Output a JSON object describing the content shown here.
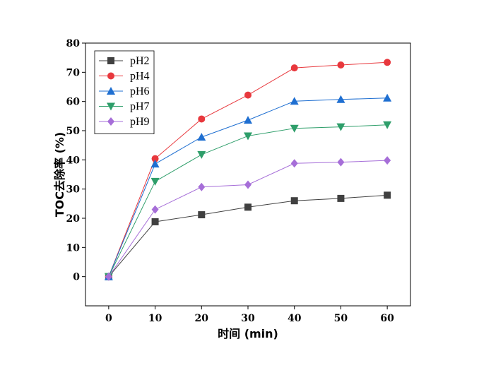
{
  "chart_data": {
    "type": "line",
    "xlabel": "时间 (min)",
    "ylabel": "TOC去除率 (%)",
    "x": [
      0,
      10,
      20,
      30,
      40,
      50,
      60
    ],
    "xlim": [
      -5,
      65
    ],
    "ylim": [
      -10,
      80
    ],
    "xticks": [
      0,
      10,
      20,
      30,
      40,
      50,
      60
    ],
    "yticks": [
      0,
      10,
      20,
      30,
      40,
      50,
      60,
      70,
      80
    ],
    "grid": false,
    "legend_position": "top-left",
    "series": [
      {
        "name": "pH2",
        "color": "#404040",
        "marker": "square",
        "values": [
          0,
          18.8,
          21.2,
          23.8,
          26.0,
          26.8,
          27.9
        ]
      },
      {
        "name": "pH4",
        "color": "#e8383d",
        "marker": "circle",
        "values": [
          0,
          40.4,
          54.0,
          62.2,
          71.5,
          72.5,
          73.4
        ]
      },
      {
        "name": "pH6",
        "color": "#1f6fd1",
        "marker": "triangle-up",
        "values": [
          0,
          38.6,
          47.8,
          53.6,
          60.1,
          60.7,
          61.2
        ]
      },
      {
        "name": "pH7",
        "color": "#2e9e6a",
        "marker": "triangle-down",
        "values": [
          0,
          32.6,
          41.8,
          48.2,
          50.8,
          51.3,
          52.0
        ]
      },
      {
        "name": "pH9",
        "color": "#a66ed8",
        "marker": "diamond",
        "values": [
          0,
          23.0,
          30.7,
          31.5,
          38.8,
          39.2,
          39.8
        ]
      }
    ]
  }
}
